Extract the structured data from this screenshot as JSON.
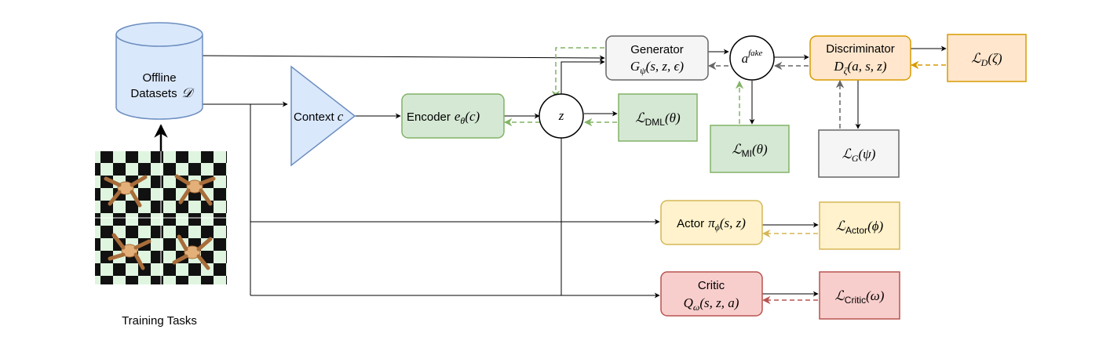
{
  "colors": {
    "blue_fill": "#dae8fc",
    "blue_stroke": "#6c8ebf",
    "green_fill": "#d5e8d4",
    "green_stroke": "#82b366",
    "gray_fill": "#f5f5f5",
    "gray_stroke": "#666666",
    "orange_fill": "#ffe6cc",
    "orange_stroke": "#d79b00",
    "yellow_fill": "#fff2cc",
    "yellow_stroke": "#d6b656",
    "red_fill": "#f8cecc",
    "red_stroke": "#b85450",
    "green_dash": "#82b366",
    "gray_dash": "#666666",
    "orange_dash": "#d79b00",
    "yellow_dash": "#d6b656",
    "red_dash": "#b85450"
  },
  "dataset": {
    "line1": "Offline",
    "line2": "Datasets",
    "symbol": "𝒟"
  },
  "training": {
    "caption": "Training Tasks"
  },
  "context": {
    "label": "Context",
    "symbol": "c"
  },
  "encoder": {
    "label": "Encoder",
    "fn": "e",
    "sub": "θ",
    "args": "(c)"
  },
  "z_node": {
    "symbol": "z"
  },
  "a_fake": {
    "symbol": "a",
    "sup": "fake"
  },
  "generator": {
    "label": "Generator",
    "fn": "G",
    "sub": "ψ",
    "args": "(s, z, ϵ)"
  },
  "discriminator": {
    "label": "Discriminator",
    "fn": "D",
    "sub": "ζ",
    "args": "(a, s, z)"
  },
  "actor": {
    "label": "Actor",
    "fn": "π",
    "sub": "ϕ",
    "args": "(s, z)"
  },
  "critic": {
    "label": "Critic",
    "fn": "Q",
    "sub": "ω",
    "args": "(s, z, a)"
  },
  "losses": {
    "dml": {
      "base": "ℒ",
      "sub": "DML",
      "args": "(θ)"
    },
    "mi": {
      "base": "ℒ",
      "sub": "MI",
      "args": "(θ)"
    },
    "g": {
      "base": "ℒ",
      "sub": "G",
      "args": "(ψ)"
    },
    "d": {
      "base": "ℒ",
      "sub": "D",
      "args": "(ζ)"
    },
    "actor": {
      "base": "ℒ",
      "sub": "Actor",
      "args": "(ϕ)"
    },
    "critic": {
      "base": "ℒ",
      "sub": "Critic",
      "args": "(ω)"
    }
  }
}
